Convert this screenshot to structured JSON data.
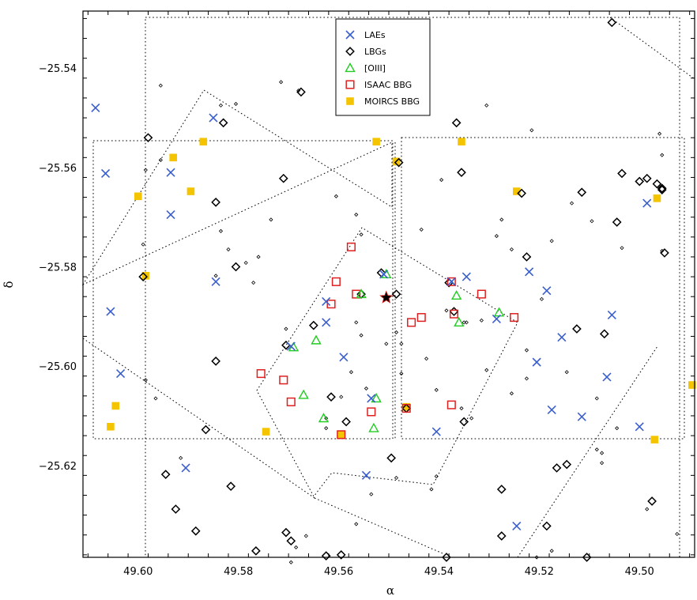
{
  "chart_data": {
    "type": "scatter",
    "xlabel": "α",
    "ylabel": "δ",
    "xlim": [
      49.611,
      49.489
    ],
    "ylim": [
      -25.6385,
      -25.5285
    ],
    "x_ticks": [
      49.6,
      49.58,
      49.56,
      49.54,
      49.52,
      49.5
    ],
    "x_tick_labels": [
      "49.60",
      "49.58",
      "49.56",
      "49.54",
      "49.52",
      "49.50"
    ],
    "y_ticks": [
      -25.54,
      -25.56,
      -25.58,
      -25.6,
      -25.62
    ],
    "y_tick_labels": [
      "−25.54",
      "−25.56",
      "−25.58",
      "−25.60",
      "−25.62"
    ],
    "legend_position": "top-center",
    "series": [
      {
        "name": "LAEs",
        "marker": "x",
        "color": "#3a5fcd",
        "points": [
          [
            49.6085,
            -25.548
          ],
          [
            49.6065,
            -25.5612
          ],
          [
            49.6055,
            -25.589
          ],
          [
            49.6035,
            -25.6015
          ],
          [
            49.5935,
            -25.5695
          ],
          [
            49.5935,
            -25.561
          ],
          [
            49.585,
            -25.55
          ],
          [
            49.5845,
            -25.583
          ],
          [
            49.5905,
            -25.6205
          ],
          [
            49.5695,
            -25.596
          ],
          [
            49.5625,
            -25.587
          ],
          [
            49.5625,
            -25.5912
          ],
          [
            49.559,
            -25.5982
          ],
          [
            49.5535,
            -25.6065
          ],
          [
            49.5545,
            -25.622
          ],
          [
            49.551,
            -25.5815
          ],
          [
            49.5405,
            -25.6132
          ],
          [
            49.5375,
            -25.583
          ],
          [
            49.5345,
            -25.582
          ],
          [
            49.5285,
            -25.5905
          ],
          [
            49.522,
            -25.581
          ],
          [
            49.5205,
            -25.5992
          ],
          [
            49.5185,
            -25.5848
          ],
          [
            49.5175,
            -25.6088
          ],
          [
            49.5155,
            -25.5942
          ],
          [
            49.5115,
            -25.6102
          ],
          [
            49.5065,
            -25.6022
          ],
          [
            49.5055,
            -25.5897
          ],
          [
            49.5,
            -25.6122
          ],
          [
            49.4985,
            -25.5672
          ],
          [
            49.5245,
            -25.6322
          ]
        ]
      },
      {
        "name": "LBGs",
        "marker": "diamond",
        "color": "#000000",
        "points": [
          [
            49.598,
            -25.554
          ],
          [
            49.599,
            -25.582
          ],
          [
            49.5845,
            -25.567
          ],
          [
            49.5845,
            -25.599
          ],
          [
            49.583,
            -25.551
          ],
          [
            49.5805,
            -25.58
          ],
          [
            49.5865,
            -25.6128
          ],
          [
            49.5945,
            -25.6218
          ],
          [
            49.5925,
            -25.6288
          ],
          [
            49.5885,
            -25.6332
          ],
          [
            49.5815,
            -25.6242
          ],
          [
            49.5765,
            -25.6372
          ],
          [
            49.571,
            -25.5622
          ],
          [
            49.5675,
            -25.5448
          ],
          [
            49.5705,
            -25.6335
          ],
          [
            49.5695,
            -25.6352
          ],
          [
            49.5705,
            -25.5958
          ],
          [
            49.5625,
            -25.6382
          ],
          [
            49.5595,
            -25.638
          ],
          [
            49.565,
            -25.5918
          ],
          [
            49.5615,
            -25.6062
          ],
          [
            49.5555,
            -25.5855
          ],
          [
            49.5585,
            -25.6112
          ],
          [
            49.5515,
            -25.5812
          ],
          [
            49.5485,
            -25.5855
          ],
          [
            49.5495,
            -25.6185
          ],
          [
            49.548,
            -25.559
          ],
          [
            49.5465,
            -25.6085
          ],
          [
            49.5355,
            -25.561
          ],
          [
            49.538,
            -25.5832
          ],
          [
            49.537,
            -25.589
          ],
          [
            49.535,
            -25.6112
          ],
          [
            49.5385,
            -25.6385
          ],
          [
            49.5365,
            -25.551
          ],
          [
            49.5235,
            -25.5652
          ],
          [
            49.5225,
            -25.578
          ],
          [
            49.5115,
            -25.565
          ],
          [
            49.5125,
            -25.5925
          ],
          [
            49.5165,
            -25.6205
          ],
          [
            49.5145,
            -25.6198
          ],
          [
            49.5045,
            -25.571
          ],
          [
            49.507,
            -25.5935
          ],
          [
            49.5055,
            -25.5308
          ],
          [
            49.5,
            -25.5628
          ],
          [
            49.4985,
            -25.5622
          ],
          [
            49.4955,
            -25.5642
          ],
          [
            49.4975,
            -25.6272
          ],
          [
            49.5185,
            -25.6322
          ],
          [
            49.5275,
            -25.6248
          ],
          [
            49.5275,
            -25.6342
          ],
          [
            49.5105,
            -25.6385
          ],
          [
            49.5035,
            -25.5612
          ],
          [
            49.495,
            -25.5772
          ],
          [
            49.4965,
            -25.5633
          ],
          [
            49.4955,
            -25.5645
          ]
        ]
      },
      {
        "name": "[OIII]",
        "marker": "triangle",
        "color": "#22cc22",
        "points": [
          [
            49.569,
            -25.5962
          ],
          [
            49.5645,
            -25.5948
          ],
          [
            49.567,
            -25.6058
          ],
          [
            49.563,
            -25.6105
          ],
          [
            49.5555,
            -25.5855
          ],
          [
            49.5505,
            -25.5815
          ],
          [
            49.5525,
            -25.6065
          ],
          [
            49.553,
            -25.6125
          ],
          [
            49.5365,
            -25.5858
          ],
          [
            49.536,
            -25.5912
          ],
          [
            49.528,
            -25.5892
          ]
        ]
      },
      {
        "name": "ISAAC BBG",
        "marker": "square-open",
        "color": "#e02020",
        "points": [
          [
            49.5575,
            -25.576
          ],
          [
            49.5605,
            -25.583
          ],
          [
            49.5615,
            -25.5875
          ],
          [
            49.5565,
            -25.5855
          ],
          [
            49.5755,
            -25.6015
          ],
          [
            49.571,
            -25.6028
          ],
          [
            49.5695,
            -25.6072
          ],
          [
            49.5595,
            -25.6138
          ],
          [
            49.5535,
            -25.6092
          ],
          [
            49.5455,
            -25.5912
          ],
          [
            49.5435,
            -25.5902
          ],
          [
            49.5465,
            -25.6085
          ],
          [
            49.5375,
            -25.583
          ],
          [
            49.537,
            -25.5895
          ],
          [
            49.5375,
            -25.6078
          ],
          [
            49.5315,
            -25.5855
          ],
          [
            49.525,
            -25.5902
          ]
        ]
      },
      {
        "name": "MOIRCS BBG",
        "marker": "square-filled",
        "color": "#f5c400",
        "points": [
          [
            49.6,
            -25.5658
          ],
          [
            49.593,
            -25.558
          ],
          [
            49.5895,
            -25.5648
          ],
          [
            49.587,
            -25.5548
          ],
          [
            49.5985,
            -25.5818
          ],
          [
            49.6055,
            -25.6122
          ],
          [
            49.6045,
            -25.608
          ],
          [
            49.5745,
            -25.6132
          ],
          [
            49.5525,
            -25.5548
          ],
          [
            49.5485,
            -25.5588
          ],
          [
            49.5355,
            -25.5548
          ],
          [
            49.5245,
            -25.5648
          ],
          [
            49.4965,
            -25.5662
          ],
          [
            49.497,
            -25.6148
          ],
          [
            49.4895,
            -25.6038
          ],
          [
            49.5465,
            -25.6082
          ],
          [
            49.5595,
            -25.6138
          ]
        ]
      }
    ],
    "small_points": [
      [
        49.5955,
        -25.5435
      ],
      [
        49.5835,
        -25.5475
      ],
      [
        49.5805,
        -25.5472
      ],
      [
        49.5715,
        -25.5428
      ],
      [
        49.568,
        -25.5445
      ],
      [
        49.5955,
        -25.5585
      ],
      [
        49.5985,
        -25.5605
      ],
      [
        49.599,
        -25.5755
      ],
      [
        49.5835,
        -25.5728
      ],
      [
        49.582,
        -25.5765
      ],
      [
        49.5785,
        -25.5792
      ],
      [
        49.577,
        -25.5832
      ],
      [
        49.5845,
        -25.5818
      ],
      [
        49.5735,
        -25.5705
      ],
      [
        49.576,
        -25.578
      ],
      [
        49.5605,
        -25.5658
      ],
      [
        49.5565,
        -25.5695
      ],
      [
        49.5555,
        -25.5735
      ],
      [
        49.5435,
        -25.5725
      ],
      [
        49.5395,
        -25.5625
      ],
      [
        49.5305,
        -25.5475
      ],
      [
        49.5285,
        -25.5738
      ],
      [
        49.5275,
        -25.5705
      ],
      [
        49.5255,
        -25.5765
      ],
      [
        49.5215,
        -25.5525
      ],
      [
        49.5175,
        -25.5748
      ],
      [
        49.5135,
        -25.5672
      ],
      [
        49.5095,
        -25.5708
      ],
      [
        49.5035,
        -25.5762
      ],
      [
        49.4955,
        -25.5575
      ],
      [
        49.496,
        -25.5532
      ],
      [
        49.4955,
        -25.5768
      ],
      [
        49.5705,
        -25.5925
      ],
      [
        49.5565,
        -25.5912
      ],
      [
        49.5555,
        -25.5938
      ],
      [
        49.5505,
        -25.5955
      ],
      [
        49.5485,
        -25.5932
      ],
      [
        49.5475,
        -25.5955
      ],
      [
        49.5385,
        -25.5888
      ],
      [
        49.535,
        -25.5912
      ],
      [
        49.5315,
        -25.5908
      ],
      [
        49.5475,
        -25.6015
      ],
      [
        49.5405,
        -25.6048
      ],
      [
        49.5425,
        -25.5985
      ],
      [
        49.5345,
        -25.5912
      ],
      [
        49.5305,
        -25.6008
      ],
      [
        49.5255,
        -25.6055
      ],
      [
        49.5225,
        -25.6025
      ],
      [
        49.5195,
        -25.5865
      ],
      [
        49.5145,
        -25.6012
      ],
      [
        49.5085,
        -25.6065
      ],
      [
        49.5045,
        -25.6125
      ],
      [
        49.5075,
        -25.6175
      ],
      [
        49.5085,
        -25.6168
      ],
      [
        49.5355,
        -25.6085
      ],
      [
        49.5335,
        -25.6105
      ],
      [
        49.5415,
        -25.6248
      ],
      [
        49.5405,
        -25.6222
      ],
      [
        49.5535,
        -25.6258
      ],
      [
        49.5565,
        -25.6318
      ],
      [
        49.5665,
        -25.6342
      ],
      [
        49.5685,
        -25.6365
      ],
      [
        49.5695,
        -25.6395
      ],
      [
        49.5625,
        -25.6105
      ],
      [
        49.5575,
        -25.6012
      ],
      [
        49.5595,
        -25.6062
      ],
      [
        49.5485,
        -25.6225
      ],
      [
        49.5205,
        -25.6385
      ],
      [
        49.5175,
        -25.6372
      ],
      [
        49.4985,
        -25.6288
      ],
      [
        49.4925,
        -25.6338
      ],
      [
        49.5965,
        -25.6065
      ],
      [
        49.5915,
        -25.6185
      ],
      [
        49.5985,
        -25.6028
      ],
      [
        49.5625,
        -25.6125
      ],
      [
        49.5545,
        -25.6045
      ],
      [
        49.5225,
        -25.5968
      ],
      [
        49.5075,
        -25.6195
      ]
    ],
    "star_point": [
      49.5505,
      -25.5862
    ]
  }
}
